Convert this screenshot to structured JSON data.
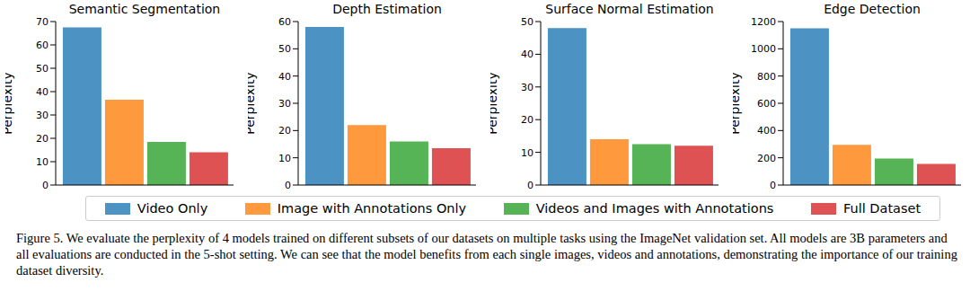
{
  "chart_data": [
    {
      "type": "bar",
      "title": "Semantic Segmentation",
      "y_label": "Perplexity",
      "categories": [
        null
      ],
      "series": [
        {
          "name": "Video Only",
          "color": "#4c92c3",
          "values": [
            67.5
          ]
        },
        {
          "name": "Image with Annotations Only",
          "color": "#ff993e",
          "values": [
            36.5
          ]
        },
        {
          "name": "Videos and Images with Annotations",
          "color": "#56b356",
          "values": [
            18.5
          ]
        },
        {
          "name": "Full Dataset",
          "color": "#de5253",
          "values": [
            14
          ]
        }
      ],
      "ylim": [
        0,
        70
      ],
      "yticks": [
        0,
        10,
        20,
        30,
        40,
        50,
        60,
        70
      ],
      "grid": false,
      "legend": "bottom",
      "tick_labels": "y"
    },
    {
      "type": "bar",
      "title": "Depth Estimation",
      "y_label": "Perplexity",
      "categories": [
        null
      ],
      "series": [
        {
          "name": "Video Only",
          "color": "#4c92c3",
          "values": [
            58
          ]
        },
        {
          "name": "Image with Annotations Only",
          "color": "#ff993e",
          "values": [
            22
          ]
        },
        {
          "name": "Videos and Images with Annotations",
          "color": "#56b356",
          "values": [
            16
          ]
        },
        {
          "name": "Full Dataset",
          "color": "#de5253",
          "values": [
            13.5
          ]
        }
      ],
      "ylim": [
        0,
        60
      ],
      "yticks": [
        0,
        10,
        20,
        30,
        40,
        50,
        60
      ],
      "grid": false,
      "legend": "bottom",
      "tick_labels": "y"
    },
    {
      "type": "bar",
      "title": "Surface Normal Estimation",
      "y_label": "Perplexity",
      "categories": [
        null
      ],
      "series": [
        {
          "name": "Video Only",
          "color": "#4c92c3",
          "values": [
            48
          ]
        },
        {
          "name": "Image with Annotations Only",
          "color": "#ff993e",
          "values": [
            14
          ]
        },
        {
          "name": "Videos and Images with Annotations",
          "color": "#56b356",
          "values": [
            12.5
          ]
        },
        {
          "name": "Full Dataset",
          "color": "#de5253",
          "values": [
            12
          ]
        }
      ],
      "ylim": [
        0,
        50
      ],
      "yticks": [
        0,
        10,
        20,
        30,
        40,
        50
      ],
      "grid": false,
      "legend": "bottom",
      "tick_labels": "y"
    },
    {
      "type": "bar",
      "title": "Edge Detection",
      "y_label": "Perplexity",
      "categories": [
        null
      ],
      "series": [
        {
          "name": "Video Only",
          "color": "#4c92c3",
          "values": [
            1150
          ]
        },
        {
          "name": "Image with Annotations Only",
          "color": "#ff993e",
          "values": [
            295
          ]
        },
        {
          "name": "Videos and Images with Annotations",
          "color": "#56b356",
          "values": [
            195
          ]
        },
        {
          "name": "Full Dataset",
          "color": "#de5253",
          "values": [
            155
          ]
        }
      ],
      "ylim": [
        0,
        1200
      ],
      "yticks": [
        0,
        200,
        400,
        600,
        800,
        1000,
        1200
      ],
      "grid": false,
      "legend": "bottom",
      "tick_labels": "y"
    }
  ],
  "caption": "Figure 5. We evaluate the perplexity of 4 models trained on different subsets of our datasets on multiple tasks using the ImageNet validation set. All models are 3B parameters and all evaluations are conducted in the 5-shot setting. We can see that the model benefits from each single images, videos and annotations, demonstrating the importance of our training dataset diversity."
}
